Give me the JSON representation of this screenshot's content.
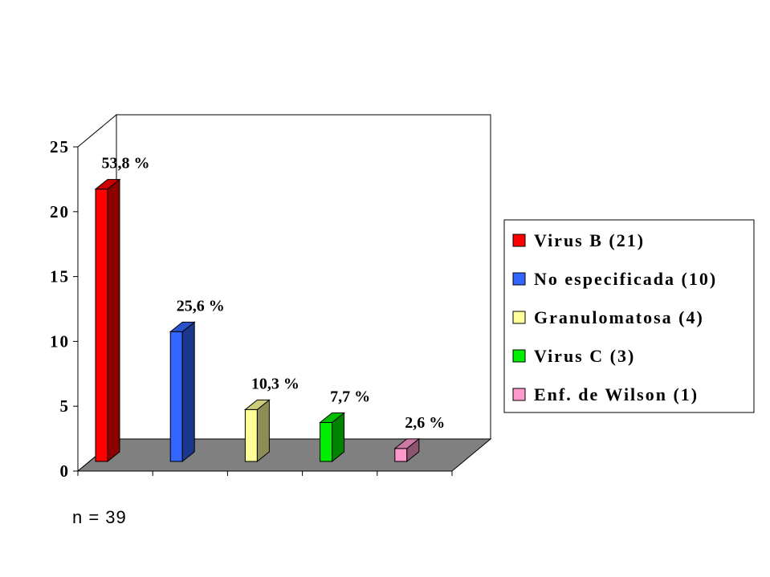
{
  "chart_data": {
    "type": "bar",
    "title": "",
    "xlabel": "",
    "ylabel": "",
    "ylim": [
      0,
      25
    ],
    "yticks": [
      0,
      5,
      10,
      15,
      20,
      25
    ],
    "categories": [
      "Virus B (21)",
      "No especificada (10)",
      "Granulomatosa (4)",
      "Virus C (3)",
      "Enf. de Wilson (1)"
    ],
    "values": [
      21,
      10,
      4,
      3,
      1
    ],
    "data_labels": [
      "53,8 %",
      "25,6 %",
      "10,3 %",
      "7,7 %",
      "2,6 %"
    ],
    "colors": [
      "#ff0000",
      "#3366ff",
      "#ffff99",
      "#00ee00",
      "#ff99cc"
    ],
    "legend_position": "right",
    "grid": false,
    "style": "3d-column"
  },
  "footnote": "n = 39"
}
